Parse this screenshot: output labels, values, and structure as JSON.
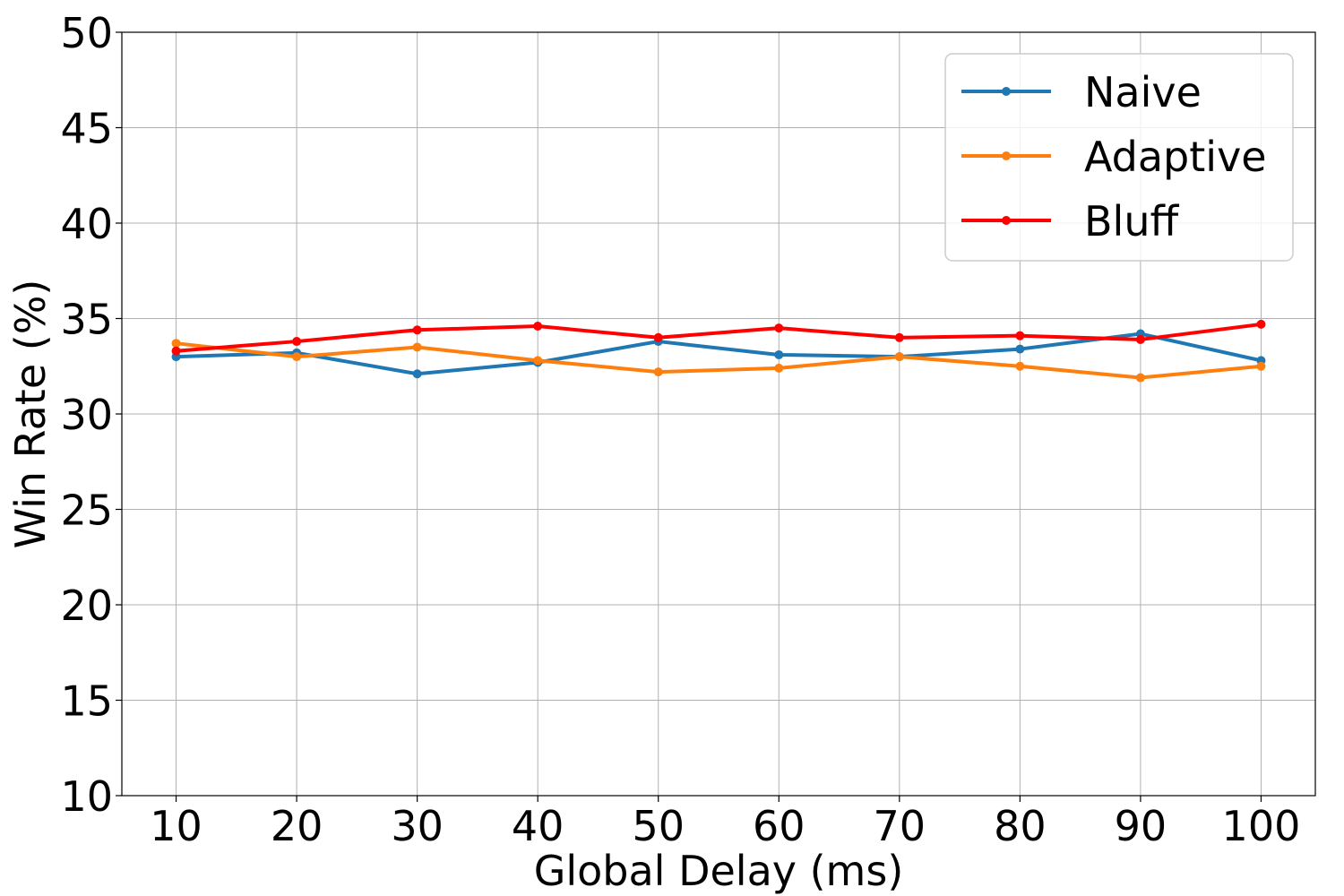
{
  "chart_data": {
    "type": "line",
    "title": "",
    "xlabel": "Global Delay (ms)",
    "ylabel": "Win Rate (%)",
    "x": [
      10,
      20,
      30,
      40,
      50,
      60,
      70,
      80,
      90,
      100
    ],
    "xlim": [
      5.5,
      104.5
    ],
    "ylim": [
      10,
      50
    ],
    "xticks": [
      10,
      20,
      30,
      40,
      50,
      60,
      70,
      80,
      90,
      100
    ],
    "yticks": [
      10,
      15,
      20,
      25,
      30,
      35,
      40,
      45,
      50
    ],
    "grid": true,
    "legend_position": "top-right",
    "series": [
      {
        "name": "Naive",
        "color": "#1f77b4",
        "values": [
          33.0,
          33.2,
          32.1,
          32.7,
          33.8,
          33.1,
          33.0,
          33.4,
          34.2,
          32.8
        ]
      },
      {
        "name": "Adaptive",
        "color": "#ff7f0e",
        "values": [
          33.7,
          33.0,
          33.5,
          32.8,
          32.2,
          32.4,
          33.0,
          32.5,
          31.9,
          32.5
        ]
      },
      {
        "name": "Bluff",
        "color": "#ff0000",
        "values": [
          33.3,
          33.8,
          34.4,
          34.6,
          34.0,
          34.5,
          34.0,
          34.1,
          33.9,
          34.7
        ]
      }
    ]
  }
}
